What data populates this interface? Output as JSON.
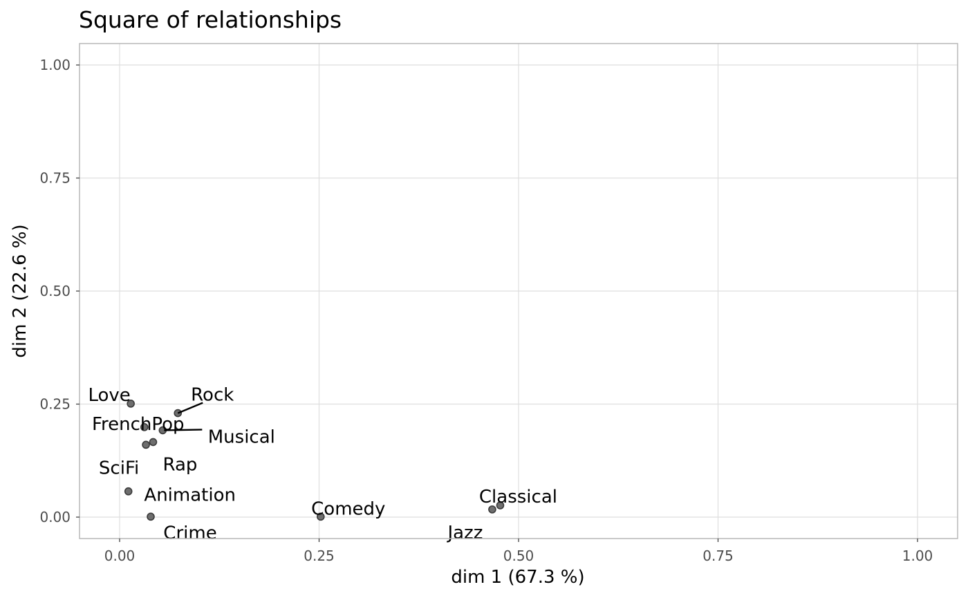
{
  "chart_data": {
    "type": "scatter",
    "title": "Square of relationships",
    "xlabel": "dim 1 (67.3 %)",
    "ylabel": "dim 2 (22.6 %)",
    "xlim": [
      0,
      1
    ],
    "ylim": [
      0,
      1
    ],
    "x_ticks": [
      "0.00",
      "0.25",
      "0.50",
      "0.75",
      "1.00"
    ],
    "y_ticks": [
      "0.00",
      "0.25",
      "0.50",
      "0.75",
      "1.00"
    ],
    "grid": true,
    "points": [
      {
        "label": "Love",
        "x": 0.014,
        "y": 0.251
      },
      {
        "label": "Rock",
        "x": 0.073,
        "y": 0.23
      },
      {
        "label": "FrenchPop",
        "x": 0.031,
        "y": 0.199
      },
      {
        "label": "Musical",
        "x": 0.054,
        "y": 0.192
      },
      {
        "label": "Rap",
        "x": 0.042,
        "y": 0.166
      },
      {
        "label": "SciFi",
        "x": 0.033,
        "y": 0.16
      },
      {
        "label": "Animation",
        "x": 0.011,
        "y": 0.057
      },
      {
        "label": "Crime",
        "x": 0.039,
        "y": 0.001
      },
      {
        "label": "Comedy",
        "x": 0.252,
        "y": 0.001
      },
      {
        "label": "Classical",
        "x": 0.477,
        "y": 0.026
      },
      {
        "label": "Jazz",
        "x": 0.467,
        "y": 0.017
      }
    ]
  }
}
